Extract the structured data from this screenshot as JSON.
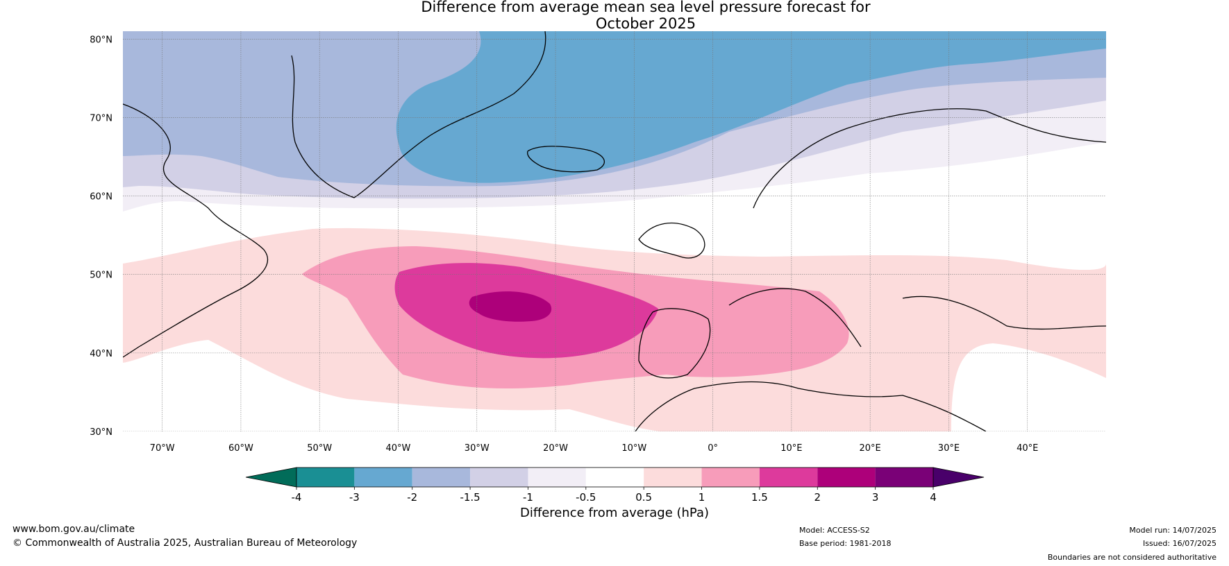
{
  "title": "Difference from average mean sea level pressure forecast for\nOctober 2025",
  "map": {
    "lon_labels": [
      "70°W",
      "60°W",
      "50°W",
      "40°W",
      "30°W",
      "20°W",
      "10°W",
      "0°",
      "10°E",
      "20°E",
      "30°E",
      "40°E"
    ],
    "lat_labels": [
      "80°N",
      "70°N",
      "60°N",
      "50°N",
      "40°N",
      "30°N"
    ],
    "extent": {
      "lon_min": -75,
      "lon_max": 50,
      "lat_min": 30,
      "lat_max": 81
    }
  },
  "colorbar": {
    "ticks": [
      "-4",
      "-3",
      "-2",
      "-1.5",
      "-1",
      "-0.5",
      "0.5",
      "1",
      "1.5",
      "2",
      "3",
      "4"
    ],
    "colors": [
      "#1a8f94",
      "#66a8d1",
      "#a8b8dc",
      "#d2d0e6",
      "#f2eef6",
      "#ffffff",
      "#fcdcdc",
      "#f79cba",
      "#dd3a9c",
      "#ad007a",
      "#7a0177"
    ],
    "under_color": "#016c59",
    "over_color": "#49006a",
    "label": "Difference from average (hPa)"
  },
  "footer": {
    "url": "www.bom.gov.au/climate",
    "copyright": "© Commonwealth of Australia 2025, Australian Bureau of Meteorology",
    "model": "Model: ACCESS-S2",
    "base_period": "Base period: 1981-2018",
    "model_run": "Model run: 14/07/2025",
    "issued": "Issued: 16/07/2025",
    "disclaimer": "Boundaries are not considered authoritative"
  }
}
